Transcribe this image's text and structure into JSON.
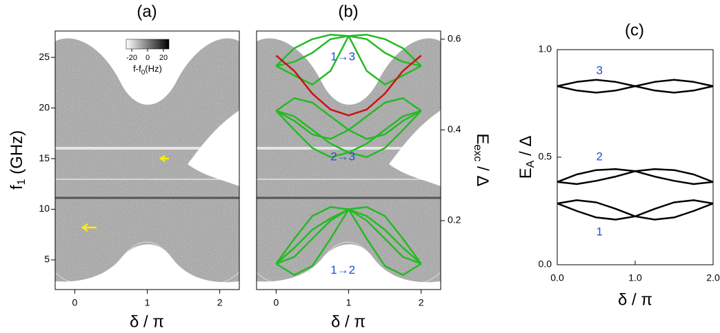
{
  "chart_data": [
    {
      "type": "image",
      "title": "(a)",
      "xlim": [
        -0.27,
        2.27
      ],
      "xticks": [
        0,
        1,
        2
      ],
      "ylim": [
        2.07,
        27.6
      ],
      "yticks": [
        5,
        10,
        15,
        20,
        25
      ],
      "x_label": "δ / π",
      "y_label": [
        "f",
        "1",
        " (GHz)"
      ],
      "colorbar": {
        "label": [
          "f-f",
          "0",
          "(Hz)"
        ],
        "clim": [
          -27,
          27
        ],
        "ticks": [
          -20,
          0,
          20
        ]
      }
    },
    {
      "type": "image",
      "title": "(b)",
      "xlim": [
        -0.27,
        2.27
      ],
      "xticks": [
        0,
        1,
        2
      ],
      "ylim": [
        2.07,
        27.6
      ],
      "y2lim": [
        0.048,
        0.618
      ],
      "y2ticks": [
        0.2,
        0.4,
        0.6
      ],
      "x_label": "δ / π",
      "y2_label": [
        "E",
        "exc",
        " / Δ"
      ],
      "x": [
        0,
        0.25,
        0.5,
        0.75,
        1,
        1.25,
        1.5,
        1.75,
        2
      ],
      "series": [
        {
          "color": "#22bb22",
          "axis": "y2",
          "values": [
            0.105,
            0.16,
            0.21,
            0.23,
            0.225,
            0.2,
            0.16,
            0.12,
            0.105
          ]
        },
        {
          "color": "#22bb22",
          "axis": "y2",
          "values": [
            0.105,
            0.12,
            0.16,
            0.2,
            0.225,
            0.23,
            0.21,
            0.16,
            0.105
          ]
        },
        {
          "color": "#22bb22",
          "axis": "y2",
          "values": [
            0.105,
            0.14,
            0.18,
            0.205,
            0.225,
            0.21,
            0.18,
            0.14,
            0.105
          ]
        },
        {
          "color": "#22bb22",
          "axis": "y2",
          "values": [
            0.105,
            0.08,
            0.1,
            0.16,
            0.225,
            0.16,
            0.1,
            0.08,
            0.105
          ]
        },
        {
          "color": "#22bb22",
          "axis": "y2",
          "values": [
            0.442,
            0.47,
            0.46,
            0.43,
            0.4,
            0.38,
            0.39,
            0.42,
            0.442
          ]
        },
        {
          "color": "#22bb22",
          "axis": "y2",
          "values": [
            0.442,
            0.42,
            0.39,
            0.38,
            0.4,
            0.43,
            0.46,
            0.47,
            0.442
          ]
        },
        {
          "color": "#22bb22",
          "axis": "y2",
          "values": [
            0.442,
            0.4,
            0.36,
            0.34,
            0.35,
            0.37,
            0.4,
            0.43,
            0.442
          ]
        },
        {
          "color": "#22bb22",
          "axis": "y2",
          "values": [
            0.442,
            0.43,
            0.4,
            0.37,
            0.35,
            0.34,
            0.36,
            0.4,
            0.442
          ]
        },
        {
          "color": "#22bb22",
          "axis": "y2",
          "values": [
            0.541,
            0.58,
            0.6,
            0.61,
            0.607,
            0.6,
            0.57,
            0.55,
            0.541
          ]
        },
        {
          "color": "#22bb22",
          "axis": "y2",
          "values": [
            0.541,
            0.55,
            0.57,
            0.6,
            0.607,
            0.61,
            0.6,
            0.58,
            0.541
          ]
        },
        {
          "color": "#22bb22",
          "axis": "y2",
          "values": [
            0.541,
            0.52,
            0.5,
            0.53,
            0.607,
            0.53,
            0.5,
            0.52,
            0.541
          ]
        },
        {
          "color": "#cc1111",
          "axis": "y2",
          "values": [
            0.564,
            0.53,
            0.48,
            0.445,
            0.432,
            0.445,
            0.48,
            0.53,
            0.564
          ]
        }
      ],
      "annotations": [
        {
          "text": "1→3",
          "x": 0.75,
          "y": 0.56
        },
        {
          "text": "2→3",
          "x": 0.75,
          "y": 0.34
        },
        {
          "text": "1→2",
          "x": 0.75,
          "y": 0.09
        }
      ]
    },
    {
      "type": "line",
      "title": "(c)",
      "xlim": [
        0,
        2
      ],
      "xticks": [
        {
          "value": 0,
          "label": "0.0"
        },
        {
          "value": 1,
          "label": "1.0"
        },
        {
          "value": 2,
          "label": "2.0"
        }
      ],
      "ylim": [
        0,
        1
      ],
      "yticks": [
        {
          "value": 0,
          "label": "0.0"
        },
        {
          "value": 0.5,
          "label": "0.5"
        },
        {
          "value": 1,
          "label": "1.0"
        }
      ],
      "x_label": "δ / π",
      "y_label": [
        "E",
        "A",
        " / Δ"
      ],
      "x": [
        0,
        0.25,
        0.5,
        0.75,
        1,
        1.25,
        1.5,
        1.75,
        2
      ],
      "series": [
        {
          "color": "#000000",
          "values": [
            0.285,
            0.3,
            0.29,
            0.26,
            0.225,
            0.21,
            0.22,
            0.25,
            0.285
          ]
        },
        {
          "color": "#000000",
          "values": [
            0.285,
            0.25,
            0.22,
            0.21,
            0.225,
            0.26,
            0.29,
            0.3,
            0.285
          ]
        },
        {
          "color": "#000000",
          "values": [
            0.385,
            0.42,
            0.44,
            0.445,
            0.435,
            0.41,
            0.39,
            0.375,
            0.385
          ]
        },
        {
          "color": "#000000",
          "values": [
            0.385,
            0.375,
            0.39,
            0.41,
            0.435,
            0.445,
            0.44,
            0.42,
            0.385
          ]
        },
        {
          "color": "#000000",
          "values": [
            0.83,
            0.85,
            0.86,
            0.85,
            0.83,
            0.81,
            0.8,
            0.81,
            0.83
          ]
        },
        {
          "color": "#000000",
          "values": [
            0.83,
            0.81,
            0.8,
            0.81,
            0.83,
            0.85,
            0.86,
            0.85,
            0.83
          ]
        }
      ],
      "annotations": [
        {
          "text": "3",
          "x": 0.5,
          "y": 0.9
        },
        {
          "text": "2",
          "x": 0.5,
          "y": 0.5
        },
        {
          "text": "1",
          "x": 0.5,
          "y": 0.15
        }
      ]
    }
  ]
}
